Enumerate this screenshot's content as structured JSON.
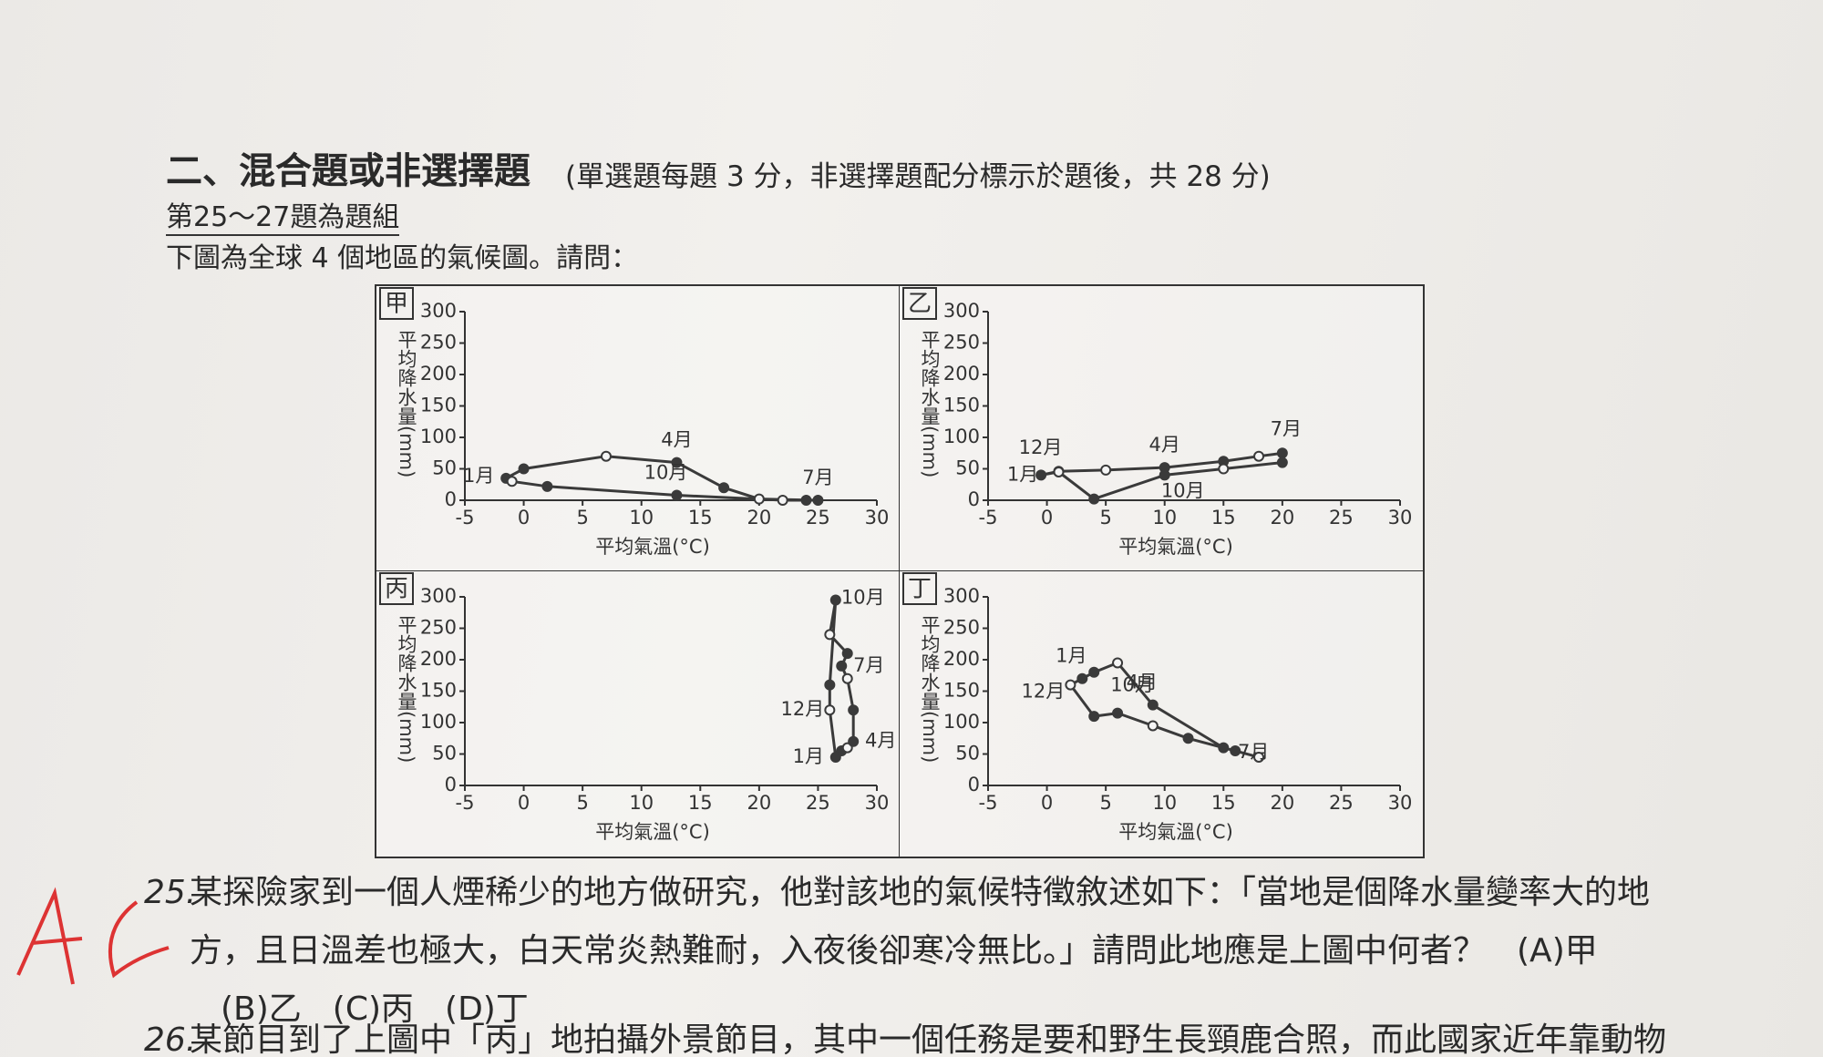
{
  "header": {
    "section_title": "二、混合題或非選擇題",
    "note": "(單選題每題 3 分，非選擇題配分標示於題後，共 28 分)",
    "group": "第25～27題為題組",
    "intro": "下圖為全球 4 個地區的氣候圖。請問："
  },
  "charts": [
    {
      "type": "line",
      "label": "甲",
      "xlabel": "平均氣溫(°C)",
      "ylabel": "平均降水量(mm)",
      "xlim": [
        -5,
        30
      ],
      "xticks": [
        -5,
        0,
        5,
        10,
        15,
        20,
        25,
        30
      ],
      "ylim": [
        0,
        300
      ],
      "yticks": [
        0,
        50,
        100,
        150,
        200,
        250,
        300
      ],
      "x": [
        -1.5,
        0,
        7,
        13,
        17,
        20,
        25,
        24,
        22,
        13,
        2,
        -1
      ],
      "values": [
        35,
        50,
        70,
        60,
        20,
        2,
        0,
        0,
        0,
        8,
        22,
        30
      ],
      "annotations": [
        "1月",
        "4月",
        "7月",
        "10月"
      ]
    },
    {
      "type": "line",
      "label": "乙",
      "xlabel": "平均氣溫(°C)",
      "ylabel": "平均降水量(mm)",
      "xlim": [
        -5,
        30
      ],
      "xticks": [
        -5,
        0,
        5,
        10,
        15,
        20,
        25,
        30
      ],
      "ylim": [
        0,
        300
      ],
      "yticks": [
        0,
        50,
        100,
        150,
        200,
        250,
        300
      ],
      "x": [
        -0.5,
        1,
        5,
        10,
        15,
        18,
        20,
        20,
        15,
        10,
        4,
        1
      ],
      "values": [
        40,
        46,
        48,
        52,
        62,
        70,
        75,
        60,
        50,
        40,
        2,
        45
      ],
      "annotations": [
        "1月",
        "4月",
        "7月",
        "10月",
        "12月"
      ]
    },
    {
      "type": "line",
      "label": "丙",
      "xlabel": "平均氣溫(°C)",
      "ylabel": "平均降水量(mm)",
      "xlim": [
        -5,
        30
      ],
      "xticks": [
        -5,
        0,
        5,
        10,
        15,
        20,
        25,
        30
      ],
      "ylim": [
        0,
        300
      ],
      "yticks": [
        0,
        50,
        100,
        150,
        200,
        250,
        300
      ],
      "x": [
        26.5,
        27,
        27.5,
        28,
        28,
        27.5,
        27,
        27.5,
        26,
        26.5,
        26,
        26
      ],
      "values": [
        45,
        55,
        60,
        70,
        120,
        170,
        190,
        210,
        240,
        295,
        160,
        120
      ],
      "annotations": [
        "1月",
        "4月",
        "7月",
        "10月",
        "12月"
      ]
    },
    {
      "type": "line",
      "label": "丁",
      "xlabel": "平均氣溫(°C)",
      "ylabel": "平均降水量(mm)",
      "xlim": [
        -5,
        30
      ],
      "xticks": [
        -5,
        0,
        5,
        10,
        15,
        20,
        25,
        30
      ],
      "ylim": [
        0,
        300
      ],
      "yticks": [
        0,
        50,
        100,
        150,
        200,
        250,
        300
      ],
      "x": [
        3,
        4,
        6,
        9,
        15,
        18,
        16,
        12,
        9,
        6,
        4,
        2
      ],
      "values": [
        170,
        180,
        195,
        128,
        60,
        45,
        55,
        75,
        95,
        115,
        110,
        160
      ],
      "annotations": [
        "1月",
        "4月",
        "7月",
        "10月",
        "12月"
      ]
    }
  ],
  "questions": [
    {
      "number": "25.",
      "text": "某探險家到一個人煙稀少的地方做研究，他對該地的氣候特徵敘述如下：「當地是個降水量變率大的地方，且日溫差也極大，白天常炎熱難耐，入夜後卻寒冷無比。」請問此地應是上圖中何者？",
      "options": [
        "(A)甲",
        "(B)乙",
        "(C)丙",
        "(D)丁"
      ]
    },
    {
      "number": "26.",
      "text": "某節目到了上圖中「丙」地拍攝外景節目，其中一個任務是要和野生長頸鹿合照，而此國家近年靠動物"
    }
  ]
}
